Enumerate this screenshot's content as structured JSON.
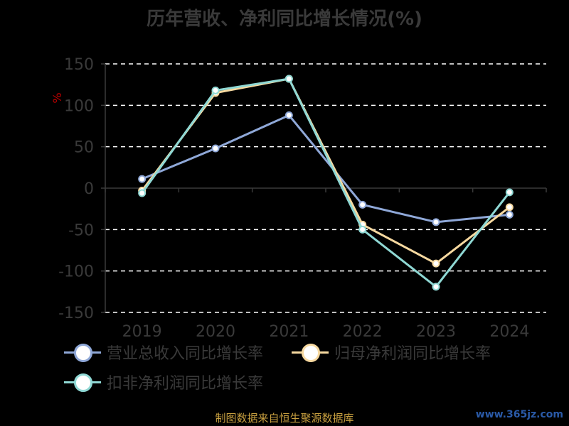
{
  "title": "历年营收、净利同比增长情况(%)",
  "source": "制图数据来自恒生聚源数据库",
  "watermark": "www.365jz.com",
  "chart_data": {
    "type": "line",
    "title": "历年营收、净利同比增长情况(%)",
    "ylabel": "%",
    "xlabel": "",
    "categories": [
      "2019",
      "2020",
      "2021",
      "2022",
      "2023",
      "2024"
    ],
    "ylim": [
      -150,
      150
    ],
    "yticks": [
      150,
      100,
      50,
      0,
      -50,
      -100,
      -150
    ],
    "grid": true,
    "legend_position": "bottom",
    "series": [
      {
        "name": "营业总收入同比增长率",
        "color": "#8fa8d8",
        "values": [
          11,
          48,
          88,
          -20,
          -41,
          -32
        ]
      },
      {
        "name": "归母净利润同比增长率",
        "color": "#f7d9a0",
        "values": [
          -3,
          115,
          132,
          -44,
          -91,
          -23
        ]
      },
      {
        "name": "扣非净利润同比增长率",
        "color": "#8fd8d4",
        "values": [
          -6,
          118,
          132,
          -50,
          -119,
          -5
        ]
      }
    ]
  }
}
